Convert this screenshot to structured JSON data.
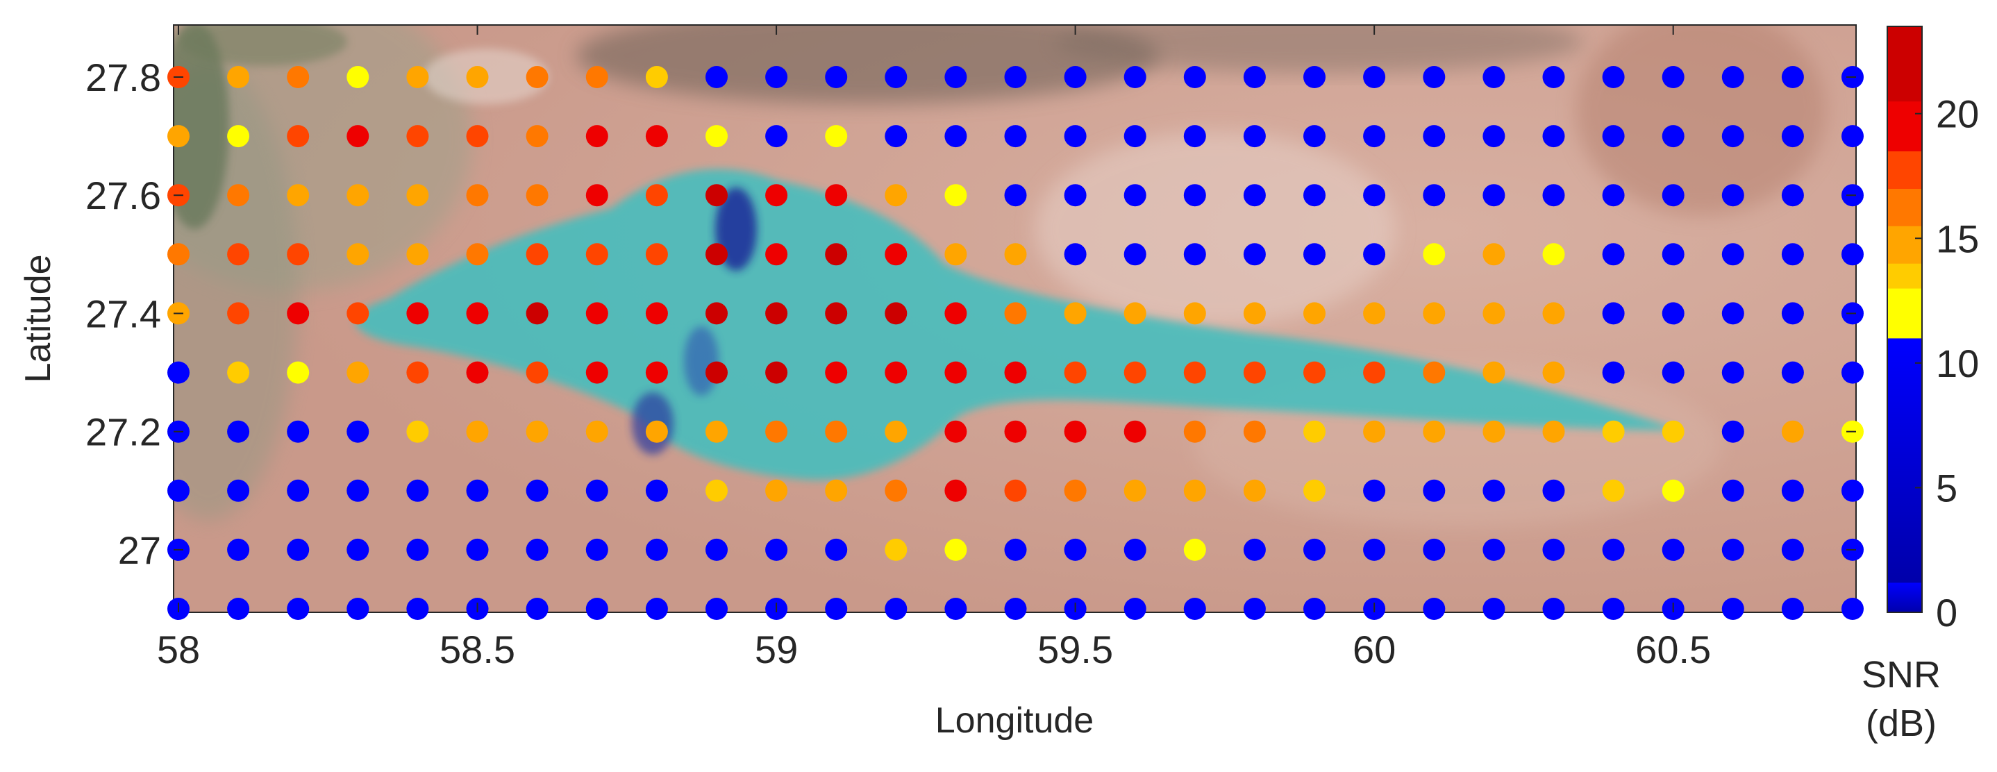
{
  "chart_data": {
    "type": "scatter",
    "title": "",
    "xlabel": "Longitude",
    "ylabel": "Latitude",
    "xlim": [
      58.0,
      60.8
    ],
    "ylim": [
      26.9,
      27.88
    ],
    "xticks": [
      "58",
      "58.5",
      "59",
      "59.5",
      "60",
      "60.5"
    ],
    "xtick_values": [
      58,
      58.5,
      59,
      59.5,
      60,
      60.5
    ],
    "yticks": [
      "27",
      "27.2",
      "27.4",
      "27.6",
      "27.8"
    ],
    "ytick_values": [
      27.0,
      27.2,
      27.4,
      27.6,
      27.8
    ],
    "grid": false,
    "background": "satellite image",
    "colorbar": {
      "label_line1": "SNR",
      "label_line2": "(dB)",
      "range": [
        0,
        23.5
      ],
      "threshold": 11,
      "ticks": [
        "0",
        "5",
        "10",
        "15",
        "20"
      ],
      "tick_values": [
        0,
        5,
        10,
        15,
        20
      ],
      "colors": [
        "#0000aa",
        "#0000ff",
        "#ffff00",
        "#ffcc00",
        "#ffa500",
        "#ff7800",
        "#ff4500",
        "#ee0000",
        "#cc0000"
      ]
    },
    "x": [
      58.0,
      58.1,
      58.2,
      58.3,
      58.4,
      58.5,
      58.6,
      58.7,
      58.8,
      58.9,
      59.0,
      59.1,
      59.2,
      59.3,
      59.4,
      59.5,
      59.6,
      59.7,
      59.8,
      59.9,
      60.0,
      60.1,
      60.2,
      60.3,
      60.4,
      60.5,
      60.6,
      60.7,
      60.8
    ],
    "rows": [
      {
        "lat": 27.8,
        "snr": [
          17,
          15,
          16,
          12,
          14,
          14,
          16,
          16,
          13,
          5,
          5,
          5,
          5,
          5,
          5,
          5,
          5,
          5,
          5,
          5,
          5,
          5,
          5,
          5,
          5,
          5,
          5,
          5,
          5
        ]
      },
      {
        "lat": 27.7,
        "snr": [
          15,
          12,
          17,
          19,
          18,
          17,
          16,
          19,
          19,
          12,
          5,
          12,
          5,
          5,
          5,
          5,
          5,
          5,
          5,
          5,
          5,
          5,
          5,
          5,
          5,
          5,
          5,
          5,
          5
        ]
      },
      {
        "lat": 27.6,
        "snr": [
          18,
          16,
          14,
          15,
          15,
          16,
          16,
          19,
          18,
          21,
          20,
          19,
          15,
          12,
          5,
          5,
          5,
          5,
          5,
          5,
          5,
          5,
          5,
          5,
          5,
          5,
          5,
          5,
          5
        ]
      },
      {
        "lat": 27.5,
        "snr": [
          16,
          17,
          17,
          15,
          15,
          16,
          17,
          18,
          18,
          21,
          20,
          21,
          20,
          15,
          14,
          5,
          5,
          5,
          5,
          5,
          5,
          12,
          14,
          12,
          5,
          5,
          5,
          5,
          5
        ]
      },
      {
        "lat": 27.4,
        "snr": [
          15,
          18,
          20,
          17,
          19,
          20,
          21,
          19,
          20,
          21,
          21,
          21,
          21,
          20,
          16,
          15,
          15,
          15,
          15,
          15,
          15,
          15,
          15,
          14,
          5,
          5,
          5,
          5,
          5
        ]
      },
      {
        "lat": 27.3,
        "snr": [
          5,
          13,
          12,
          15,
          18,
          19,
          18,
          20,
          19,
          21,
          21,
          20,
          20,
          20,
          19,
          17,
          17,
          17,
          17,
          17,
          17,
          16,
          15,
          14,
          5,
          5,
          5,
          5,
          5
        ]
      },
      {
        "lat": 27.2,
        "snr": [
          5,
          5,
          5,
          5,
          13,
          14,
          15,
          14,
          14,
          15,
          16,
          16,
          15,
          20,
          20,
          19,
          19,
          16,
          16,
          13,
          14,
          14,
          14,
          14,
          13,
          13,
          5,
          14,
          12
        ]
      },
      {
        "lat": 27.1,
        "snr": [
          5,
          5,
          5,
          5,
          5,
          5,
          5,
          5,
          5,
          13,
          14,
          14,
          16,
          19,
          17,
          16,
          15,
          15,
          15,
          13,
          5,
          5,
          5,
          5,
          13,
          12,
          5,
          5,
          5
        ]
      },
      {
        "lat": 27.0,
        "snr": [
          5,
          5,
          5,
          5,
          5,
          5,
          5,
          5,
          5,
          5,
          5,
          5,
          13,
          12,
          5,
          5,
          5,
          12,
          5,
          5,
          5,
          5,
          5,
          5,
          5,
          5,
          5,
          5,
          5
        ]
      },
      {
        "lat": 26.9,
        "snr": [
          5,
          5,
          5,
          5,
          5,
          5,
          5,
          5,
          5,
          5,
          5,
          5,
          5,
          5,
          5,
          5,
          5,
          5,
          5,
          5,
          5,
          5,
          5,
          5,
          5,
          5,
          5,
          5,
          5
        ]
      }
    ]
  }
}
